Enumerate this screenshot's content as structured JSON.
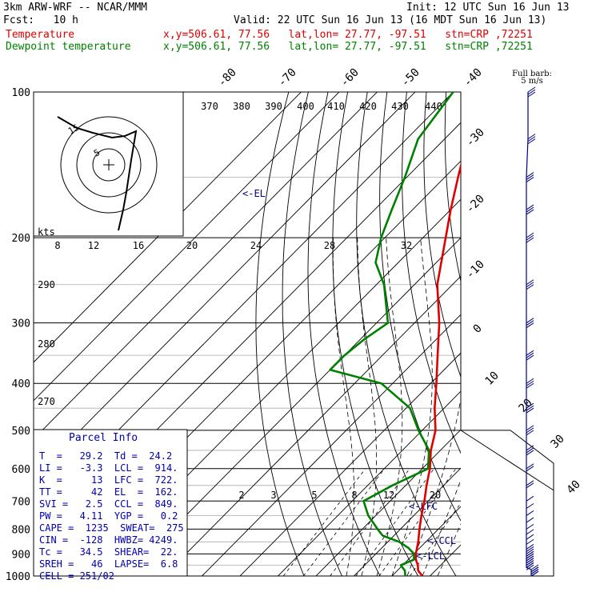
{
  "header": {
    "model": "3km ARW-WRF -- NCAR/MMM",
    "init": "Init: 12 UTC Sun 16 Jun 13",
    "fcst": "Fcst:   10 h",
    "valid": "Valid: 22 UTC Sun 16 Jun 13 (16 MDT Sun 16 Jun 13)",
    "temp_label": "Temperature",
    "dew_label": "Dewpoint temperature",
    "temp_info": "x,y=506.61, 77.56   lat,lon= 27.77, -97.51   stn=CRP ,72251",
    "dew_info": "x,y=506.61, 77.56   lat,lon= 27.77, -97.51   stn=CRP ,72251"
  },
  "colors": {
    "temperature": "#e00000",
    "dewpoint": "#008000",
    "wind": "#000080",
    "parcel_text": "#0000b0"
  },
  "barb_legend": {
    "title": "Full barb:",
    "value": "5 m/s"
  },
  "hodograph": {
    "units_label": "kts",
    "ring_labels": [
      "5",
      "15"
    ]
  },
  "parcel": {
    "title": "Parcel Info",
    "rows": [
      "T  =   29.2  Td =  24.2",
      "LI =   -3.3  LCL =  914.",
      "K  =     13  LFC =  722.",
      "TT =     42  EL  =  162.",
      "SVI =   2.5  CCL =  849.",
      "PW =   4.11  YGP =   0.2",
      "CAPE =  1235  SWEAT=  275",
      "CIN =  -128  HWBZ= 4249.",
      "Tc =   34.5  SHEAR=  22.",
      "SREH =   46  LAPSE=  6.8",
      "CELL = 251/02"
    ]
  },
  "annotations": {
    "el": "<-EL",
    "lfc": "<-LFC",
    "ccl": "<-CCL",
    "lcl": "<-LCL"
  },
  "chart_data": {
    "type": "line",
    "title": "",
    "xlabel": "",
    "ylabel": "",
    "pressure_ticks": [
      "100",
      "200",
      "300",
      "400",
      "500",
      "600",
      "700",
      "800",
      "900",
      "1000"
    ],
    "isotherm_labels": [
      "-80",
      "-70",
      "-60",
      "-50",
      "-40",
      "-30",
      "-20",
      "-10",
      "0",
      "10",
      "20",
      "30",
      "40"
    ],
    "theta_labels": [
      "370",
      "380",
      "390",
      "400",
      "410",
      "420",
      "430",
      "440",
      "290",
      "280",
      "270"
    ],
    "mixing_ratio_labels": [
      "8",
      "12",
      "16",
      "20",
      "24",
      "28",
      "32",
      "2",
      "3",
      "5",
      "8",
      "12",
      "20"
    ],
    "series": [
      {
        "name": "Temperature",
        "points": [
          [
            1000,
            28.0
          ],
          [
            975,
            25.5
          ],
          [
            950,
            24.0
          ],
          [
            925,
            22.0
          ],
          [
            900,
            20.5
          ],
          [
            850,
            18.0
          ],
          [
            800,
            15.0
          ],
          [
            750,
            12.0
          ],
          [
            700,
            9.0
          ],
          [
            650,
            5.5
          ],
          [
            600,
            2.0
          ],
          [
            550,
            -2.5
          ],
          [
            500,
            -6.5
          ],
          [
            450,
            -12.5
          ],
          [
            400,
            -18.5
          ],
          [
            350,
            -25.5
          ],
          [
            300,
            -33.5
          ],
          [
            250,
            -44.0
          ],
          [
            200,
            -54.0
          ],
          [
            175,
            -60.0
          ],
          [
            150,
            -66.5
          ],
          [
            125,
            -74.0
          ],
          [
            100,
            -78.0
          ]
        ]
      },
      {
        "name": "Dewpoint temperature",
        "points": [
          [
            1000,
            23.5
          ],
          [
            975,
            22.0
          ],
          [
            950,
            19.5
          ],
          [
            925,
            21.5
          ],
          [
            900,
            20.0
          ],
          [
            875,
            17.0
          ],
          [
            850,
            13.0
          ],
          [
            825,
            7.0
          ],
          [
            800,
            4.0
          ],
          [
            750,
            -2.0
          ],
          [
            700,
            -7.0
          ],
          [
            650,
            -3.5
          ],
          [
            600,
            1.5
          ],
          [
            550,
            -3.0
          ],
          [
            500,
            -11.0
          ],
          [
            450,
            -19.0
          ],
          [
            400,
            -33.0
          ],
          [
            375,
            -50.0
          ],
          [
            350,
            -50.0
          ],
          [
            325,
            -49.0
          ],
          [
            300,
            -47.0
          ],
          [
            250,
            -58.0
          ],
          [
            225,
            -66.0
          ],
          [
            200,
            -71.0
          ],
          [
            175,
            -75.5
          ],
          [
            150,
            -80.5
          ],
          [
            125,
            -87.0
          ],
          [
            100,
            -90.0
          ]
        ]
      }
    ],
    "wind_barbs": [
      [
        1000,
        6
      ],
      [
        990,
        8
      ],
      [
        980,
        9
      ],
      [
        970,
        10
      ],
      [
        960,
        10
      ],
      [
        950,
        10
      ],
      [
        940,
        10
      ],
      [
        930,
        10
      ],
      [
        920,
        9
      ],
      [
        910,
        9
      ],
      [
        900,
        8
      ],
      [
        880,
        8
      ],
      [
        860,
        7
      ],
      [
        840,
        7
      ],
      [
        820,
        6
      ],
      [
        800,
        6
      ],
      [
        775,
        5
      ],
      [
        750,
        5
      ],
      [
        725,
        6
      ],
      [
        700,
        6
      ],
      [
        650,
        8
      ],
      [
        600,
        10
      ],
      [
        550,
        13
      ],
      [
        500,
        17
      ],
      [
        450,
        20
      ],
      [
        400,
        22
      ],
      [
        350,
        23
      ],
      [
        300,
        24
      ],
      [
        250,
        26
      ],
      [
        200,
        25
      ],
      [
        175,
        25
      ],
      [
        150,
        24
      ],
      [
        125,
        22
      ],
      [
        100,
        20
      ]
    ]
  }
}
